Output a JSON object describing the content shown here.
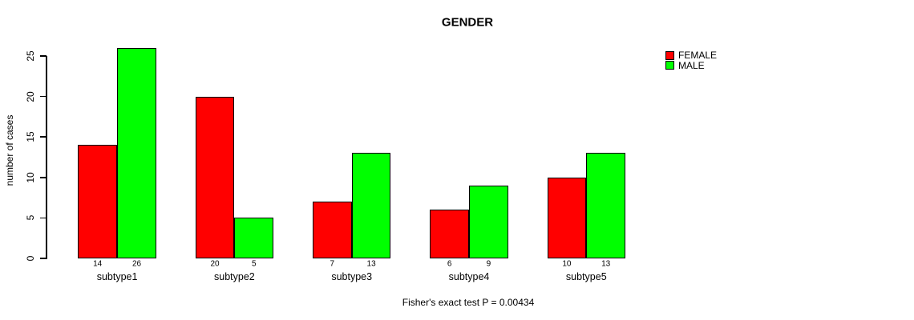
{
  "page": {
    "background_color": "#ffffff",
    "text_color": "#000000"
  },
  "chart_data": {
    "type": "bar",
    "title": "GENDER",
    "xlabel": "",
    "ylabel": "number of cases",
    "subtitle": "Fisher's exact test P = 0.00434",
    "categories": [
      "subtype1",
      "subtype2",
      "subtype3",
      "subtype4",
      "subtype5"
    ],
    "series": [
      {
        "name": "FEMALE",
        "color": "#ff0000",
        "values": [
          14,
          20,
          7,
          6,
          10
        ]
      },
      {
        "name": "MALE",
        "color": "#00ff00",
        "values": [
          26,
          5,
          13,
          9,
          13
        ]
      }
    ],
    "bar_labels": {
      "FEMALE": [
        "14",
        "20",
        "7",
        "6",
        "10"
      ],
      "MALE": [
        "26",
        "5",
        "13",
        "9",
        "13"
      ]
    },
    "yticks": [
      0,
      5,
      10,
      15,
      20,
      25
    ],
    "ylim": [
      0,
      26
    ],
    "grid": false,
    "legend_position": "top-right",
    "legend_entries": [
      "FEMALE",
      "MALE"
    ]
  }
}
